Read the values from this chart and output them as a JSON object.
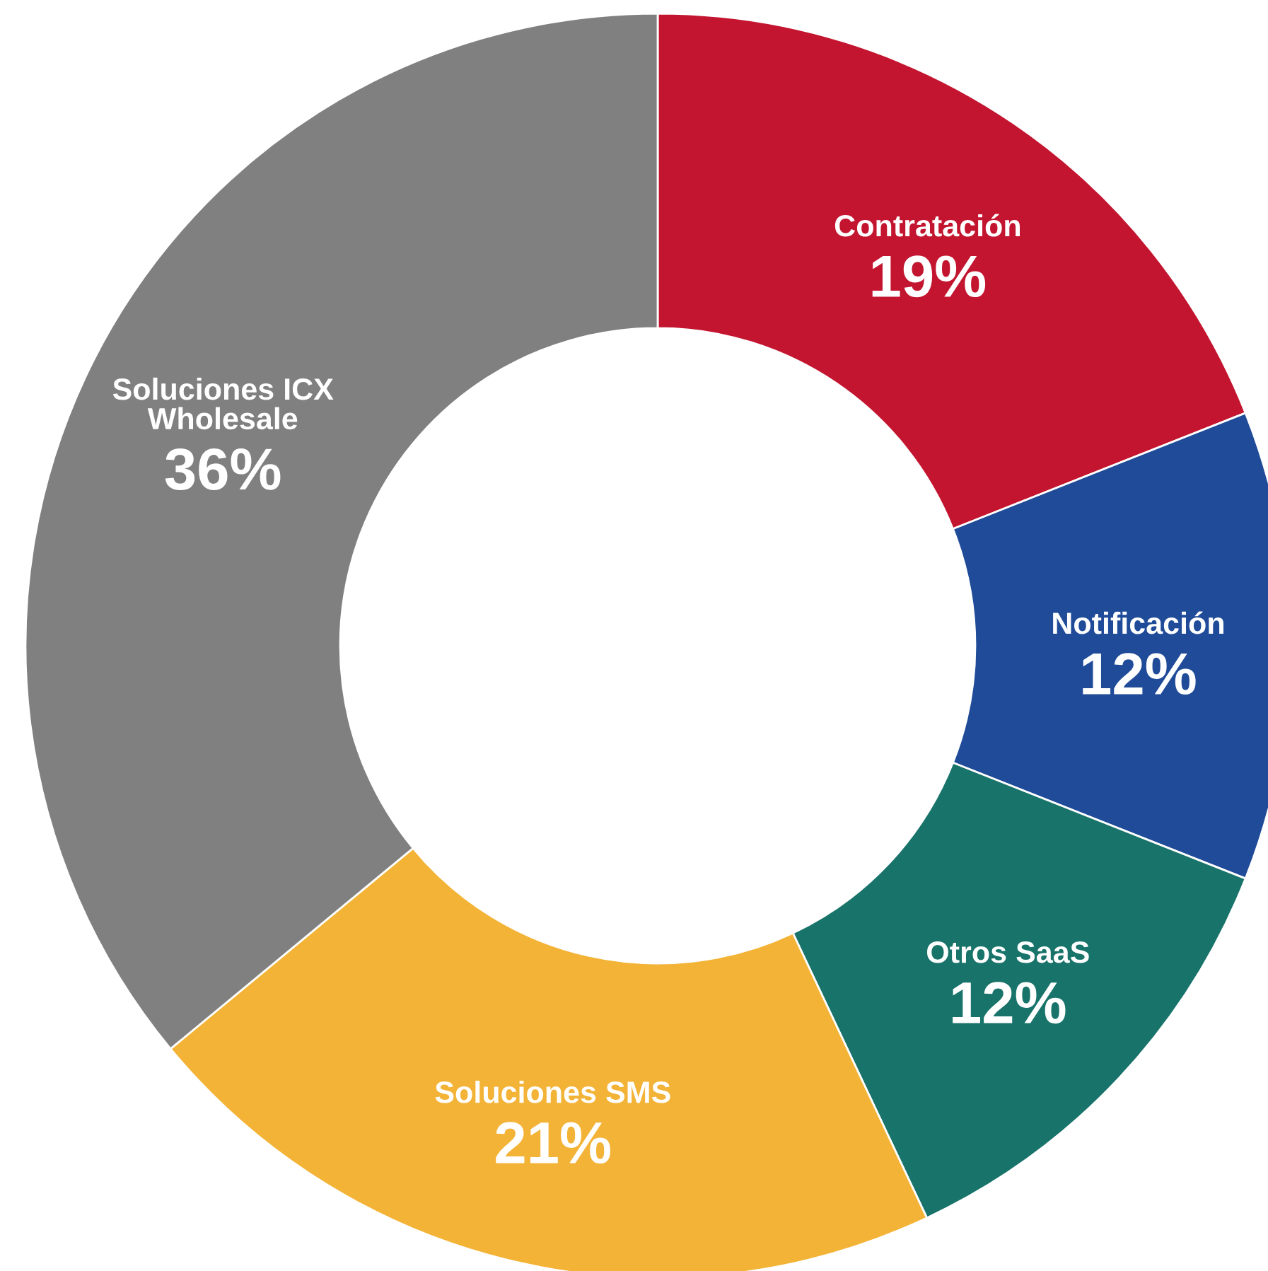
{
  "chart_data": {
    "type": "donut",
    "categories": [
      "Contratación",
      "Notificación",
      "Otros SaaS",
      "Soluciones SMS",
      "Soluciones ICX\nWholesale"
    ],
    "values": [
      19,
      12,
      12,
      21,
      36
    ],
    "value_labels": [
      "19%",
      "12%",
      "12%",
      "21%",
      "36%"
    ],
    "colors": [
      "#c3152f",
      "#1f4b99",
      "#18736a",
      "#f3b336",
      "#808080"
    ],
    "legend": false
  }
}
